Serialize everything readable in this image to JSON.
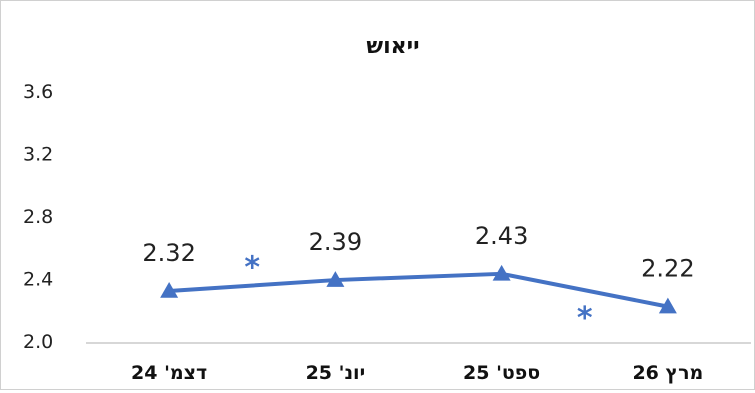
{
  "chart_data": {
    "type": "line",
    "title": "ייאוש",
    "categories": [
      "דצמ' 24",
      "יונ' 25",
      "ספט' 25",
      "מרץ 26"
    ],
    "series": [
      {
        "values": [
          2.32,
          2.39,
          2.43,
          2.22
        ]
      }
    ],
    "data_labels": [
      "2.32",
      "2.39",
      "2.43",
      "2.22"
    ],
    "ylim": [
      2.0,
      3.6
    ],
    "yticks": [
      2.0,
      2.4,
      2.8,
      3.2,
      3.6
    ],
    "ytick_labels": [
      "2.0",
      "2.4",
      "2.8",
      "3.2",
      "3.6"
    ],
    "annotations": [
      {
        "text": "*",
        "between": [
          0,
          1
        ]
      },
      {
        "text": "*",
        "between": [
          2,
          3
        ]
      }
    ],
    "marker": "triangle",
    "grid": false,
    "legend": "none",
    "color": "#4472C4"
  }
}
